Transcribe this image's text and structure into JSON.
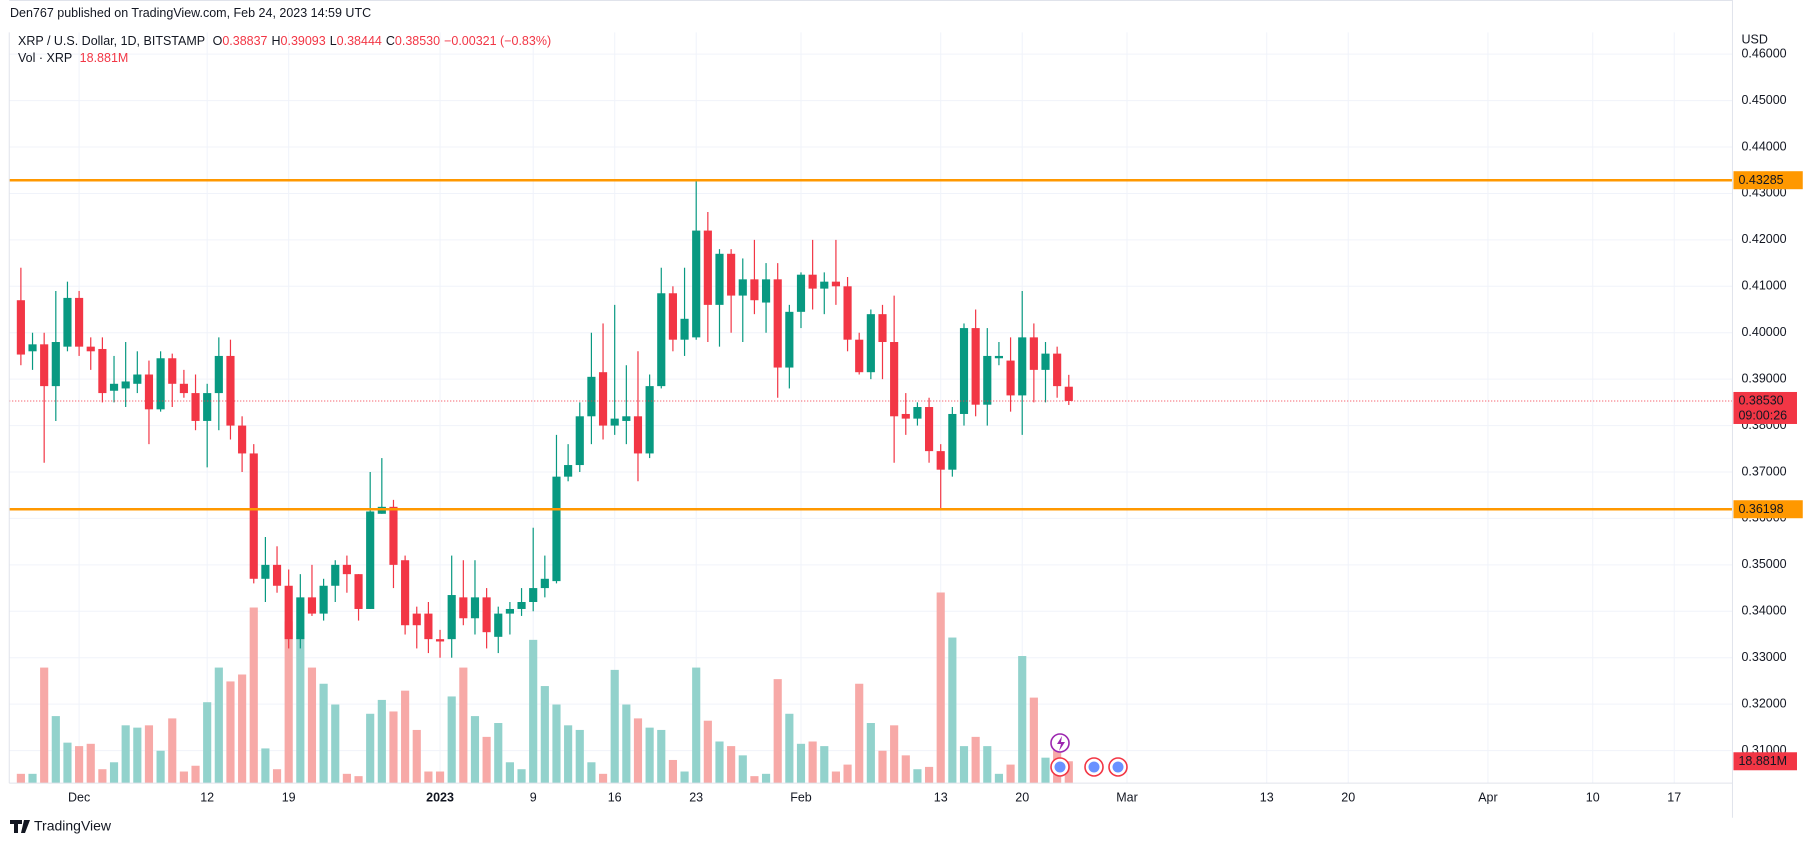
{
  "header": {
    "publisher": "Den767 published on TradingView.com, Feb 24, 2023 14:59 UTC"
  },
  "legend": {
    "symbol": "XRP / U.S. Dollar, 1D, BITSTAMP",
    "ohlc": [
      {
        "key": "O",
        "value": "0.38837"
      },
      {
        "key": "H",
        "value": "0.39093"
      },
      {
        "key": "L",
        "value": "0.38444"
      },
      {
        "key": "C",
        "value": "0.38530"
      }
    ],
    "change": "−0.00321 (−0.83%)"
  },
  "footer": {
    "brand": "TradingView"
  },
  "chart_data": {
    "type": "candlestick",
    "x": [
      "2022-11-26",
      "2022-11-27",
      "2022-11-28",
      "2022-11-29",
      "2022-11-30",
      "2022-12-01",
      "2022-12-02",
      "2022-12-03",
      "2022-12-04",
      "2022-12-05",
      "2022-12-06",
      "2022-12-07",
      "2022-12-08",
      "2022-12-09",
      "2022-12-10",
      "2022-12-11",
      "2022-12-12",
      "2022-12-13",
      "2022-12-14",
      "2022-12-15",
      "2022-12-16",
      "2022-12-17",
      "2022-12-18",
      "2022-12-19",
      "2022-12-20",
      "2022-12-21",
      "2022-12-22",
      "2022-12-23",
      "2022-12-24",
      "2022-12-25",
      "2022-12-26",
      "2022-12-27",
      "2022-12-28",
      "2022-12-29",
      "2022-12-30",
      "2022-12-31",
      "2023-01-01",
      "2023-01-02",
      "2023-01-03",
      "2023-01-04",
      "2023-01-05",
      "2023-01-06",
      "2023-01-07",
      "2023-01-08",
      "2023-01-09",
      "2023-01-10",
      "2023-01-11",
      "2023-01-12",
      "2023-01-13",
      "2023-01-14",
      "2023-01-15",
      "2023-01-16",
      "2023-01-17",
      "2023-01-18",
      "2023-01-19",
      "2023-01-20",
      "2023-01-21",
      "2023-01-22",
      "2023-01-23",
      "2023-01-24",
      "2023-01-25",
      "2023-01-26",
      "2023-01-27",
      "2023-01-28",
      "2023-01-29",
      "2023-01-30",
      "2023-01-31",
      "2023-02-01",
      "2023-02-02",
      "2023-02-03",
      "2023-02-04",
      "2023-02-05",
      "2023-02-06",
      "2023-02-07",
      "2023-02-08",
      "2023-02-09",
      "2023-02-10",
      "2023-02-11",
      "2023-02-12",
      "2023-02-13",
      "2023-02-14",
      "2023-02-15",
      "2023-02-16",
      "2023-02-17",
      "2023-02-18",
      "2023-02-19",
      "2023-02-20",
      "2023-02-21",
      "2023-02-22",
      "2023-02-23",
      "2023-02-24"
    ],
    "open": [
      0.407,
      0.396,
      0.3975,
      0.3885,
      0.397,
      0.4075,
      0.397,
      0.3965,
      0.3875,
      0.388,
      0.389,
      0.391,
      0.3835,
      0.3945,
      0.389,
      0.387,
      0.381,
      0.387,
      0.395,
      0.38,
      0.374,
      0.347,
      0.35,
      0.3455,
      0.334,
      0.343,
      0.3395,
      0.3455,
      0.35,
      0.348,
      0.3405,
      0.361,
      0.3625,
      0.351,
      0.3395,
      0.3395,
      0.334,
      0.334,
      0.343,
      0.3385,
      0.343,
      0.3345,
      0.3395,
      0.3405,
      0.342,
      0.345,
      0.3465,
      0.369,
      0.3715,
      0.382,
      0.3915,
      0.38,
      0.381,
      0.382,
      0.374,
      0.3885,
      0.4085,
      0.3985,
      0.399,
      0.422,
      0.406,
      0.417,
      0.408,
      0.4115,
      0.4065,
      0.4115,
      0.3925,
      0.4045,
      0.4125,
      0.4095,
      0.411,
      0.41,
      0.3985,
      0.3915,
      0.404,
      0.398,
      0.3825,
      0.3815,
      0.384,
      0.3745,
      0.3705,
      0.3825,
      0.401,
      0.3845,
      0.3945,
      0.394,
      0.3865,
      0.399,
      0.392,
      0.3955,
      0.38837
    ],
    "high": [
      0.414,
      0.4,
      0.4,
      0.409,
      0.411,
      0.409,
      0.399,
      0.399,
      0.395,
      0.398,
      0.396,
      0.394,
      0.396,
      0.3955,
      0.392,
      0.391,
      0.389,
      0.399,
      0.3985,
      0.382,
      0.376,
      0.356,
      0.354,
      0.349,
      0.348,
      0.35,
      0.347,
      0.351,
      0.352,
      0.348,
      0.37,
      0.373,
      0.364,
      0.352,
      0.341,
      0.342,
      0.336,
      0.352,
      0.351,
      0.351,
      0.345,
      0.341,
      0.342,
      0.345,
      0.358,
      0.352,
      0.378,
      0.376,
      0.385,
      0.4,
      0.402,
      0.406,
      0.393,
      0.396,
      0.391,
      0.414,
      0.41,
      0.414,
      0.433,
      0.426,
      0.418,
      0.418,
      0.416,
      0.42,
      0.415,
      0.415,
      0.406,
      0.413,
      0.42,
      0.413,
      0.42,
      0.412,
      0.4,
      0.405,
      0.406,
      0.408,
      0.387,
      0.385,
      0.386,
      0.376,
      0.384,
      0.402,
      0.405,
      0.401,
      0.398,
      0.399,
      0.409,
      0.402,
      0.398,
      0.397,
      0.39093
    ],
    "low": [
      0.393,
      0.392,
      0.372,
      0.381,
      0.396,
      0.395,
      0.392,
      0.385,
      0.385,
      0.384,
      0.387,
      0.376,
      0.383,
      0.384,
      0.386,
      0.379,
      0.371,
      0.379,
      0.377,
      0.37,
      0.346,
      0.342,
      0.344,
      0.332,
      0.332,
      0.339,
      0.338,
      0.342,
      0.344,
      0.338,
      0.3405,
      0.361,
      0.345,
      0.335,
      0.332,
      0.331,
      0.33,
      0.33,
      0.337,
      0.335,
      0.332,
      0.331,
      0.335,
      0.339,
      0.34,
      0.343,
      0.346,
      0.368,
      0.37,
      0.376,
      0.377,
      0.378,
      0.376,
      0.368,
      0.373,
      0.388,
      0.396,
      0.395,
      0.3985,
      0.398,
      0.397,
      0.4,
      0.398,
      0.404,
      0.4,
      0.386,
      0.388,
      0.401,
      0.405,
      0.404,
      0.406,
      0.396,
      0.391,
      0.39,
      0.39,
      0.372,
      0.378,
      0.38,
      0.372,
      0.362,
      0.369,
      0.38,
      0.382,
      0.38,
      0.393,
      0.383,
      0.378,
      0.385,
      0.385,
      0.386,
      0.38444
    ],
    "close": [
      0.3953,
      0.3975,
      0.3885,
      0.398,
      0.4075,
      0.397,
      0.396,
      0.387,
      0.389,
      0.3895,
      0.391,
      0.3835,
      0.3945,
      0.389,
      0.387,
      0.381,
      0.387,
      0.395,
      0.38,
      0.374,
      0.347,
      0.35,
      0.3455,
      0.334,
      0.343,
      0.3395,
      0.3455,
      0.35,
      0.348,
      0.3405,
      0.3615,
      0.3625,
      0.35,
      0.337,
      0.337,
      0.334,
      0.3335,
      0.3435,
      0.3385,
      0.343,
      0.3355,
      0.3395,
      0.3405,
      0.342,
      0.345,
      0.347,
      0.369,
      0.3715,
      0.382,
      0.3905,
      0.38,
      0.3815,
      0.382,
      0.374,
      0.3885,
      0.4085,
      0.3985,
      0.403,
      0.422,
      0.406,
      0.417,
      0.408,
      0.4115,
      0.407,
      0.4115,
      0.3925,
      0.4045,
      0.4125,
      0.4095,
      0.411,
      0.41,
      0.3985,
      0.3915,
      0.404,
      0.398,
      0.382,
      0.3815,
      0.384,
      0.3745,
      0.3705,
      0.3825,
      0.401,
      0.3845,
      0.395,
      0.395,
      0.3865,
      0.399,
      0.392,
      0.3955,
      0.3885,
      0.3853
    ],
    "up_color": "#089981",
    "down_color": "#f23645",
    "volume": {
      "name": "Vol · XRP",
      "last_label": "18.881M",
      "up_color": "#92d2cc",
      "down_color": "#f7a9a7",
      "ylim": [
        0,
        650
      ],
      "values": [
        8,
        8,
        100,
        58,
        35,
        32,
        34,
        12,
        18,
        50,
        48,
        50,
        28,
        56,
        10,
        15,
        70,
        100,
        88,
        94,
        152,
        30,
        12,
        140,
        132,
        100,
        86,
        68,
        8,
        6,
        60,
        72,
        62,
        80,
        46,
        10,
        10,
        75,
        100,
        58,
        40,
        52,
        18,
        12,
        124,
        84,
        68,
        50,
        46,
        18,
        8,
        98,
        68,
        56,
        48,
        46,
        20,
        10,
        100,
        54,
        36,
        32,
        24,
        6,
        8,
        90,
        60,
        34,
        36,
        32,
        10,
        16,
        86,
        52,
        28,
        50,
        24,
        12,
        14,
        165,
        126,
        32,
        40,
        32,
        8,
        16,
        110,
        74,
        22,
        36,
        18.881
      ]
    },
    "axis_label": "USD",
    "ylim": [
      0.303,
      0.4647
    ],
    "yticks": [
      {
        "value": 0.31,
        "label": "0.31000"
      },
      {
        "value": 0.32,
        "label": "0.32000"
      },
      {
        "value": 0.33,
        "label": "0.33000"
      },
      {
        "value": 0.34,
        "label": "0.34000"
      },
      {
        "value": 0.35,
        "label": "0.35000"
      },
      {
        "value": 0.36,
        "label": "0.36000"
      },
      {
        "value": 0.37,
        "label": "0.37000"
      },
      {
        "value": 0.38,
        "label": "0.38000"
      },
      {
        "value": 0.39,
        "label": "0.39000"
      },
      {
        "value": 0.4,
        "label": "0.40000"
      },
      {
        "value": 0.41,
        "label": "0.41000"
      },
      {
        "value": 0.42,
        "label": "0.42000"
      },
      {
        "value": 0.43,
        "label": "0.43000"
      },
      {
        "value": 0.44,
        "label": "0.44000"
      },
      {
        "value": 0.45,
        "label": "0.45000"
      },
      {
        "value": 0.46,
        "label": "0.46000"
      }
    ],
    "xlim": [
      "2022-11-25",
      "2023-04-22"
    ],
    "xticks": [
      {
        "value": "2022-12-01",
        "label": "Dec"
      },
      {
        "value": "2022-12-12",
        "label": "12"
      },
      {
        "value": "2022-12-19",
        "label": "19"
      },
      {
        "value": "2023-01-01",
        "label": "2023"
      },
      {
        "value": "2023-01-09",
        "label": "9"
      },
      {
        "value": "2023-01-16",
        "label": "16"
      },
      {
        "value": "2023-01-23",
        "label": "23"
      },
      {
        "value": "2023-02-01",
        "label": "Feb"
      },
      {
        "value": "2023-02-13",
        "label": "13"
      },
      {
        "value": "2023-02-20",
        "label": "20"
      },
      {
        "value": "2023-03-01",
        "label": "Mar"
      },
      {
        "value": "2023-03-13",
        "label": "13"
      },
      {
        "value": "2023-03-20",
        "label": "20"
      },
      {
        "value": "2023-04-01",
        "label": "Apr"
      },
      {
        "value": "2023-04-10",
        "label": "10"
      },
      {
        "value": "2023-04-17",
        "label": "17"
      }
    ],
    "hlines": [
      {
        "value": 0.43285,
        "color": "#ff9800"
      },
      {
        "value": 0.36198,
        "color": "#ff9800"
      }
    ],
    "last_price": {
      "label": "0.38530",
      "countdown": "09:00:26"
    },
    "grid": true
  }
}
